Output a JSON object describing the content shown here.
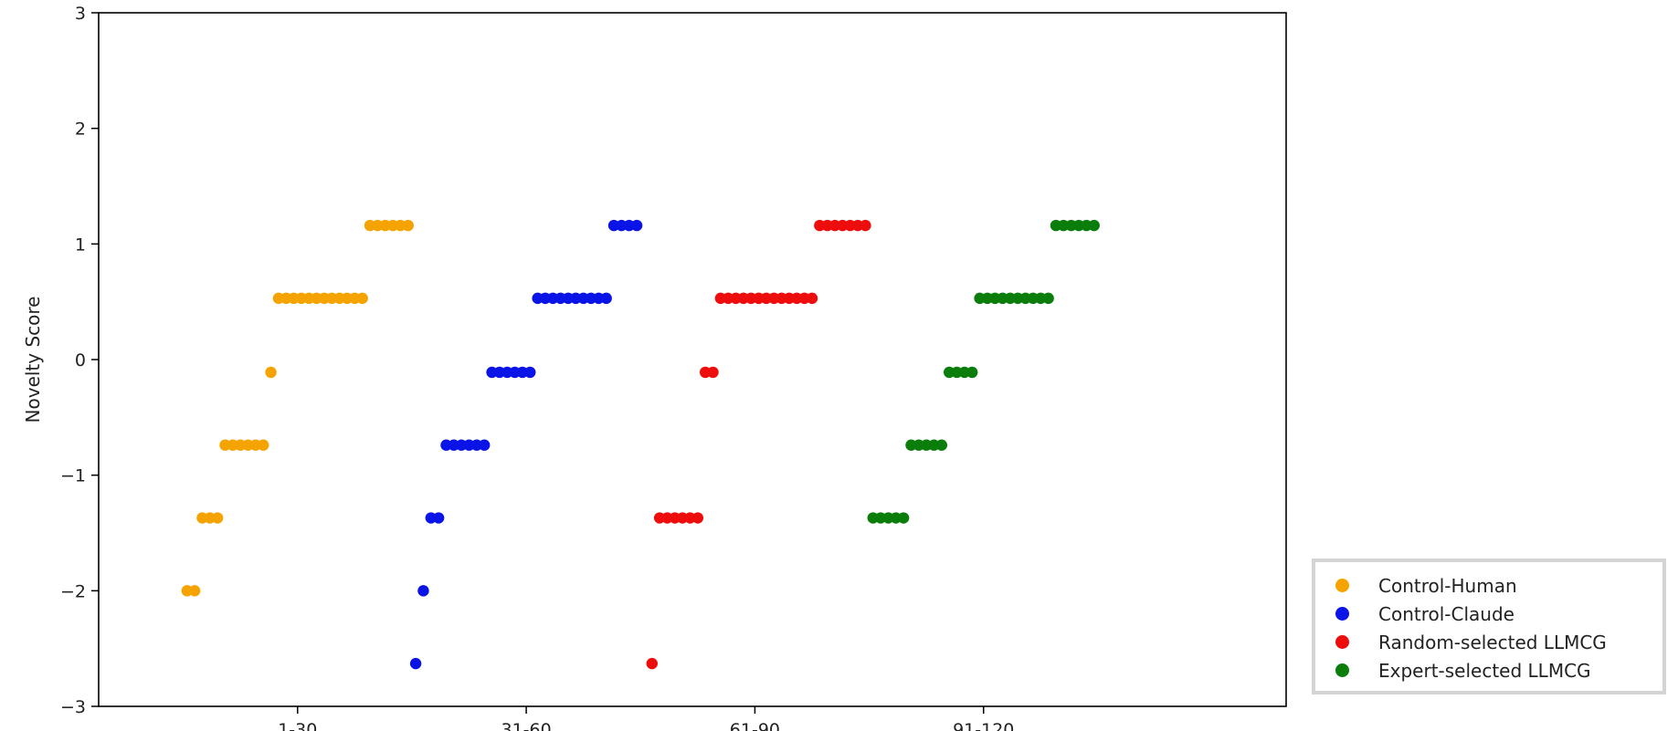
{
  "chart_data": {
    "type": "scatter",
    "title": "",
    "xlabel": "",
    "ylabel": "Novelty Score",
    "ylim": [
      -3,
      3
    ],
    "yticks": [
      "3",
      "2",
      "1",
      "0",
      "−1",
      "−2",
      "−3"
    ],
    "ytick_values": [
      3,
      2,
      1,
      0,
      -1,
      -2,
      -3
    ],
    "xlim": [
      -11.6,
      144.2
    ],
    "xticks": [
      "1-30",
      "31-60",
      "61-90",
      "91-120"
    ],
    "xtick_values": [
      14.5,
      44.5,
      74.5,
      104.5
    ],
    "legend_position": "lower-right-outside",
    "series": [
      {
        "name": "Control-Human",
        "color": "#f5a300",
        "groups": [
          {
            "y": -2.0,
            "x_start": 0,
            "count": 2
          },
          {
            "y": -1.37,
            "x_start": 2,
            "count": 3
          },
          {
            "y": -0.74,
            "x_start": 5,
            "count": 6
          },
          {
            "y": -0.11,
            "x_start": 11,
            "count": 1
          },
          {
            "y": 0.53,
            "x_start": 12,
            "count": 12
          },
          {
            "y": 1.16,
            "x_start": 24,
            "count": 6
          }
        ]
      },
      {
        "name": "Control-Claude",
        "color": "#0a14e6",
        "groups": [
          {
            "y": -2.63,
            "x_start": 30,
            "count": 1
          },
          {
            "y": -2.0,
            "x_start": 31,
            "count": 1
          },
          {
            "y": -1.37,
            "x_start": 32,
            "count": 2
          },
          {
            "y": -0.74,
            "x_start": 34,
            "count": 6
          },
          {
            "y": -0.11,
            "x_start": 40,
            "count": 6
          },
          {
            "y": 0.53,
            "x_start": 46,
            "count": 10
          },
          {
            "y": 1.16,
            "x_start": 56,
            "count": 4
          }
        ]
      },
      {
        "name": "Random-selected LLMCG",
        "color": "#ee0d0d",
        "groups": [
          {
            "y": -2.63,
            "x_start": 61,
            "count": 1
          },
          {
            "y": -1.37,
            "x_start": 62,
            "count": 6
          },
          {
            "y": -0.11,
            "x_start": 68,
            "count": 2
          },
          {
            "y": 0.53,
            "x_start": 70,
            "count": 13
          },
          {
            "y": 1.16,
            "x_start": 83,
            "count": 7
          }
        ]
      },
      {
        "name": "Expert-selected LLMCG",
        "color": "#0b7d0b",
        "groups": [
          {
            "y": -1.37,
            "x_start": 90,
            "count": 5
          },
          {
            "y": -0.74,
            "x_start": 95,
            "count": 5
          },
          {
            "y": -0.11,
            "x_start": 100,
            "count": 4
          },
          {
            "y": 0.53,
            "x_start": 104,
            "count": 10
          },
          {
            "y": 1.16,
            "x_start": 114,
            "count": 6
          }
        ]
      }
    ]
  }
}
